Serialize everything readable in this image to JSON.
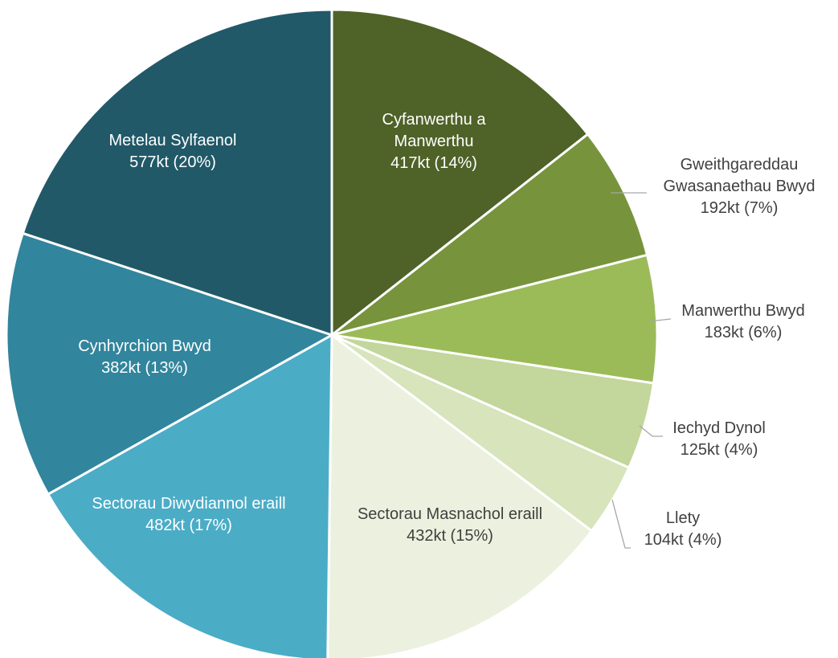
{
  "chart_data": {
    "type": "pie",
    "categories": [
      "Cyfanwerthu a Manwerthu",
      "Gweithgareddau Gwasanaethau Bwyd",
      "Manwerthu Bwyd",
      "Iechyd Dynol",
      "Llety",
      "Sectorau Masnachol eraill",
      "Sectorau Diwydiannol eraill",
      "Cynhyrchion Bwyd",
      "Metelau Sylfaenol"
    ],
    "values": [
      417,
      192,
      183,
      125,
      104,
      432,
      482,
      382,
      577
    ],
    "value_labels": [
      "417kt (14%)",
      "192kt (7%)",
      "183kt (6%)",
      "125kt (4%)",
      "104kt (4%)",
      "432kt (15%)",
      "482kt (17%)",
      "382kt (13%)",
      "577kt (20%)"
    ],
    "colors": [
      "#4f6228",
      "#77933c",
      "#9bbb59",
      "#c3d69b",
      "#d7e4bc",
      "#ebf1de",
      "#4bacc6",
      "#31859c",
      "#215968"
    ]
  }
}
